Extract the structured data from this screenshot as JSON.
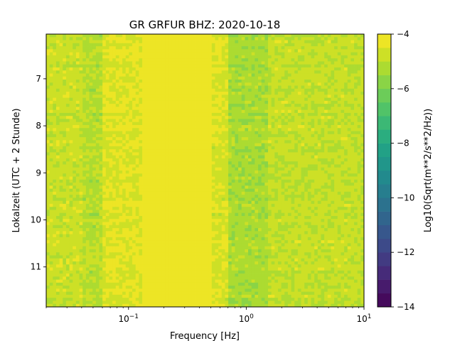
{
  "chart_data": {
    "type": "heatmap",
    "title": "GR GRFUR  BHZ: 2020-10-18",
    "xlabel": "Frequency [Hz]",
    "ylabel": "Lokalzeit (UTC + 2 Stunde)",
    "x_scale": "log",
    "xlim": [
      0.02,
      10
    ],
    "x_ticks": [
      {
        "value": 0.1,
        "base": "10",
        "exp": "−1"
      },
      {
        "value": 1,
        "base": "10",
        "exp": "0"
      },
      {
        "value": 10,
        "base": "10",
        "exp": "1"
      }
    ],
    "ylim": [
      6.05,
      11.85
    ],
    "y_inverted": true,
    "y_ticks": [
      "7",
      "8",
      "9",
      "10",
      "11"
    ],
    "colorbar": {
      "label": "Log10(Sqrt(m**2/s**2/Hz))",
      "range": [
        -14,
        -4
      ],
      "ticks": [
        "−4",
        "−6",
        "−8",
        "−10",
        "−12",
        "−14"
      ],
      "colormap": "viridis",
      "levels": 20
    },
    "band_levels": [
      {
        "f_min": 0.02,
        "f_max": 0.04,
        "level": -4.8
      },
      {
        "f_min": 0.04,
        "f_max": 0.06,
        "level": -5.1
      },
      {
        "f_min": 0.06,
        "f_max": 0.13,
        "level": -4.5
      },
      {
        "f_min": 0.13,
        "f_max": 0.5,
        "level": -4.0
      },
      {
        "f_min": 0.5,
        "f_max": 0.7,
        "level": -4.6
      },
      {
        "f_min": 0.7,
        "f_max": 1.5,
        "level": -5.3
      },
      {
        "f_min": 1.5,
        "f_max": 10,
        "level": -4.9
      }
    ]
  }
}
